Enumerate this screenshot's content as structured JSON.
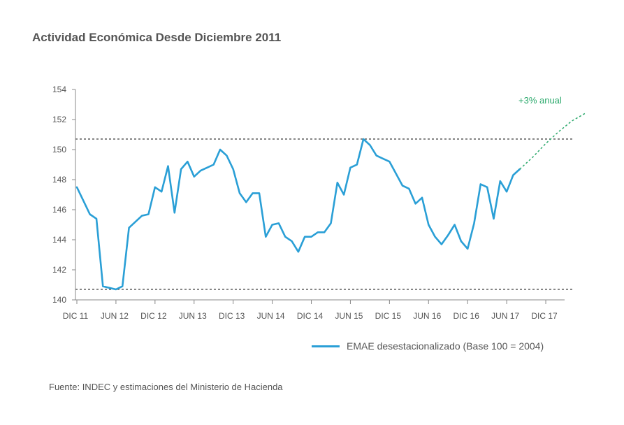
{
  "title": "Actividad Económica Desde Diciembre 2011",
  "source": "Fuente: INDEC y estimaciones del Ministerio de Hacienda",
  "colors": {
    "series": "#2a9fd6",
    "projection": "#2eaa6e",
    "axis": "#888888",
    "text": "#555555"
  },
  "chart_data": {
    "type": "line",
    "ylim": [
      140,
      154
    ],
    "yticks": [
      140,
      142,
      144,
      146,
      148,
      150,
      152,
      154
    ],
    "xticks": [
      {
        "label": "DIC 11",
        "index": 0
      },
      {
        "label": "JUN 12",
        "index": 6
      },
      {
        "label": "DIC 12",
        "index": 12
      },
      {
        "label": "JUN 13",
        "index": 18
      },
      {
        "label": "DIC 13",
        "index": 24
      },
      {
        "label": "JUN 14",
        "index": 30
      },
      {
        "label": "DIC 14",
        "index": 36
      },
      {
        "label": "JUN 15",
        "index": 42
      },
      {
        "label": "DIC 15",
        "index": 48
      },
      {
        "label": "JUN 16",
        "index": 54
      },
      {
        "label": "DIC 16",
        "index": 60
      },
      {
        "label": "JUN 17",
        "index": 66
      },
      {
        "label": "DIC 17",
        "index": 72
      }
    ],
    "series": [
      {
        "name": "EMAE desestacionalizado (Base 100 = 2004)",
        "values": [
          147.5,
          146.6,
          145.7,
          145.4,
          140.9,
          140.8,
          140.7,
          140.9,
          144.8,
          145.2,
          145.6,
          145.7,
          147.5,
          147.2,
          148.9,
          145.8,
          148.7,
          149.2,
          148.2,
          148.6,
          148.8,
          149.0,
          150.0,
          149.6,
          148.7,
          147.1,
          146.5,
          147.1,
          147.1,
          144.2,
          145.0,
          145.1,
          144.2,
          143.9,
          143.2,
          144.2,
          144.2,
          144.5,
          144.5,
          145.1,
          147.8,
          147.0,
          148.8,
          149.0,
          150.7,
          150.3,
          149.6,
          149.4,
          149.2,
          148.4,
          147.6,
          147.4,
          146.4,
          146.8,
          145.0,
          144.2,
          143.7,
          144.3,
          145.0,
          143.9,
          143.4,
          145.1,
          147.7,
          147.5,
          145.4,
          147.9,
          147.2,
          148.3,
          148.7
        ]
      }
    ],
    "projection": {
      "label": "+3% anual",
      "x": [
        68,
        70,
        72,
        74,
        76,
        78
      ],
      "values": [
        148.7,
        149.5,
        150.4,
        151.2,
        151.9,
        152.4
      ]
    },
    "reference_lines": [
      150.7,
      140.7
    ],
    "legend": "bottom-right",
    "grid": false
  }
}
